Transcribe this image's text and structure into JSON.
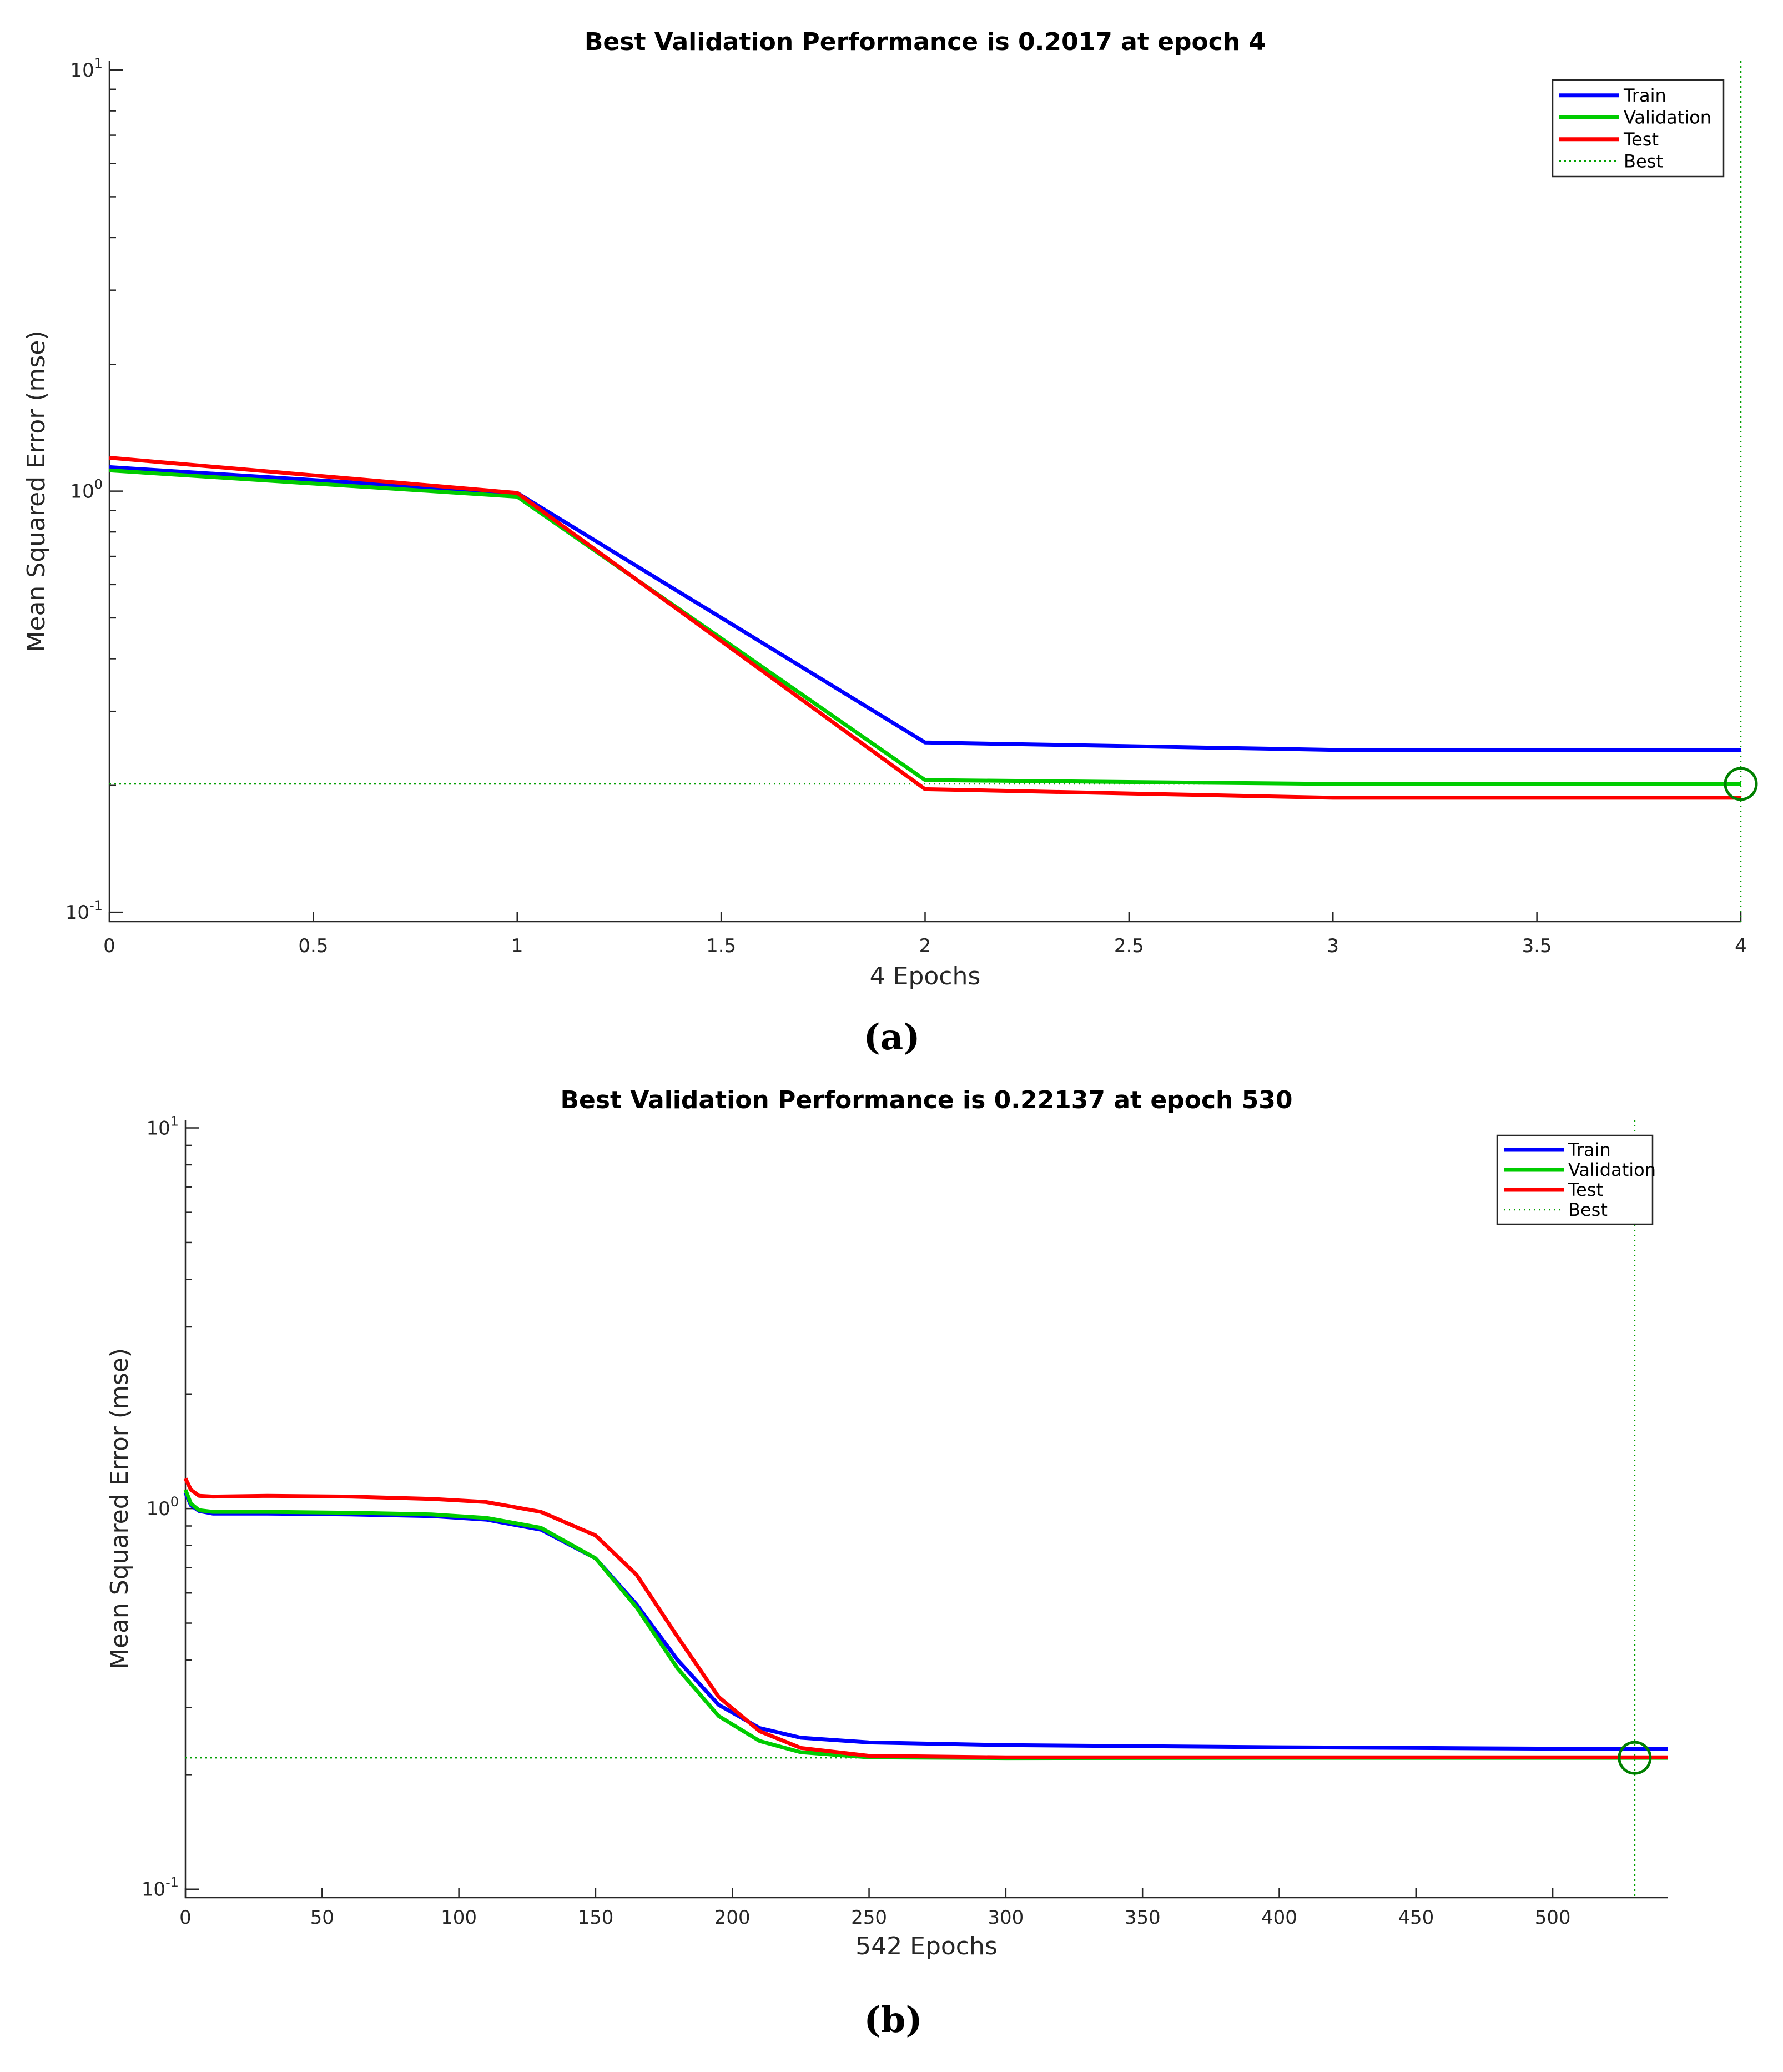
{
  "chart_data": [
    {
      "type": "line",
      "panel_label": "(a)",
      "title": "Best Validation Performance is 0.2017 at epoch 4",
      "xlabel": "4 Epochs",
      "ylabel": "Mean Squared Error  (mse)",
      "xlim": [
        0,
        4
      ],
      "ylim": [
        0.095,
        10.5
      ],
      "yscale": "log",
      "xticks": [
        0,
        0.5,
        1,
        1.5,
        2,
        2.5,
        3,
        3.5,
        4
      ],
      "xtick_labels": [
        "0",
        "0.5",
        "1",
        "1.5",
        "2",
        "2.5",
        "3",
        "3.5",
        "4"
      ],
      "yticks": [
        {
          "value": 0.1,
          "base": "10",
          "exp": "-1"
        },
        {
          "value": 1,
          "base": "10",
          "exp": "0"
        },
        {
          "value": 10,
          "base": "10",
          "exp": "1"
        }
      ],
      "legend_position": "top-right",
      "series": [
        {
          "name": "Train",
          "color": "#0000ff",
          "style": "solid",
          "x": [
            0,
            1,
            2,
            3,
            4
          ],
          "values": [
            1.14,
            0.99,
            0.253,
            0.243,
            0.243
          ]
        },
        {
          "name": "Validation",
          "color": "#00cc00",
          "style": "solid",
          "x": [
            0,
            1,
            2,
            3,
            4
          ],
          "values": [
            1.12,
            0.97,
            0.206,
            0.2017,
            0.2017
          ]
        },
        {
          "name": "Test",
          "color": "#ff0000",
          "style": "solid",
          "x": [
            0,
            1,
            2,
            3,
            4
          ],
          "values": [
            1.2,
            0.99,
            0.196,
            0.187,
            0.187
          ]
        },
        {
          "name": "Best",
          "color": "#00a000",
          "style": "dotted"
        }
      ],
      "best": {
        "epoch": 4,
        "value": 0.2017
      }
    },
    {
      "type": "line",
      "panel_label": "(b)",
      "title": "Best Validation Performance is 0.22137 at epoch 530",
      "xlabel": "542 Epochs",
      "ylabel": "Mean Squared Error  (mse)",
      "xlim": [
        0,
        542
      ],
      "ylim": [
        0.095,
        10.5
      ],
      "yscale": "log",
      "xticks": [
        0,
        50,
        100,
        150,
        200,
        250,
        300,
        350,
        400,
        450,
        500
      ],
      "xtick_labels": [
        "0",
        "50",
        "100",
        "150",
        "200",
        "250",
        "300",
        "350",
        "400",
        "450",
        "500"
      ],
      "yticks": [
        {
          "value": 0.1,
          "base": "10",
          "exp": "-1"
        },
        {
          "value": 1,
          "base": "10",
          "exp": "0"
        },
        {
          "value": 10,
          "base": "10",
          "exp": "1"
        }
      ],
      "legend_position": "top-right",
      "series": [
        {
          "name": "Train",
          "color": "#0000ff",
          "style": "solid",
          "x": [
            0,
            2,
            5,
            10,
            30,
            60,
            90,
            110,
            130,
            150,
            165,
            180,
            195,
            210,
            225,
            250,
            300,
            400,
            500,
            542
          ],
          "values": [
            1.1,
            1.02,
            0.985,
            0.97,
            0.97,
            0.965,
            0.955,
            0.935,
            0.88,
            0.74,
            0.56,
            0.4,
            0.305,
            0.265,
            0.25,
            0.243,
            0.239,
            0.236,
            0.234,
            0.234
          ]
        },
        {
          "name": "Validation",
          "color": "#00cc00",
          "style": "solid",
          "x": [
            0,
            2,
            5,
            10,
            30,
            60,
            90,
            110,
            130,
            150,
            165,
            180,
            195,
            210,
            225,
            250,
            300,
            400,
            500,
            542
          ],
          "values": [
            1.12,
            1.03,
            0.99,
            0.98,
            0.98,
            0.975,
            0.965,
            0.945,
            0.89,
            0.74,
            0.55,
            0.38,
            0.285,
            0.245,
            0.229,
            0.222,
            0.221,
            0.2214,
            0.2214,
            0.2214
          ]
        },
        {
          "name": "Test",
          "color": "#ff0000",
          "style": "solid",
          "x": [
            0,
            2,
            5,
            10,
            30,
            60,
            90,
            110,
            130,
            150,
            165,
            180,
            195,
            210,
            225,
            250,
            300,
            400,
            500,
            542
          ],
          "values": [
            1.2,
            1.12,
            1.08,
            1.075,
            1.08,
            1.075,
            1.06,
            1.04,
            0.98,
            0.85,
            0.67,
            0.46,
            0.32,
            0.26,
            0.235,
            0.224,
            0.222,
            0.222,
            0.222,
            0.222
          ]
        },
        {
          "name": "Best",
          "color": "#00a000",
          "style": "dotted"
        }
      ],
      "best": {
        "epoch": 530,
        "value": 0.22137
      }
    }
  ]
}
